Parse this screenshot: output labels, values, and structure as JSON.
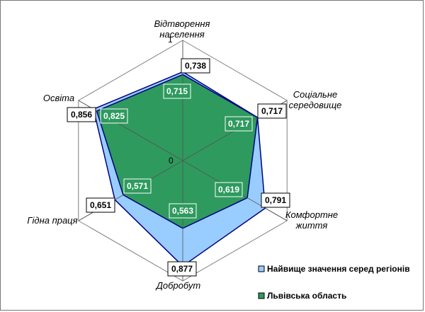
{
  "chart_data": {
    "type": "radar",
    "axes": [
      "Відтворення населення",
      "Соціальне середовище",
      "Комфортне життя",
      "Добробут",
      "Гідна праця",
      "Освіта"
    ],
    "axis_label_lines": [
      [
        "Відтворення",
        "населення"
      ],
      [
        "Соціальне",
        "середовище"
      ],
      [
        "Комфортне",
        "життя"
      ],
      [
        "Добробут"
      ],
      [
        "Гідна праця"
      ],
      [
        "Освіта"
      ]
    ],
    "rlim": [
      0,
      1
    ],
    "ticks": [
      "0",
      "1"
    ],
    "series": [
      {
        "name": "Найвище значення серед регіонів",
        "color": "#99ccff",
        "values": [
          0.738,
          0.717,
          0.791,
          0.877,
          0.651,
          0.856
        ],
        "labels": [
          "0,738",
          "0,717",
          "0,791",
          "0,877",
          "0,651",
          "0,856"
        ]
      },
      {
        "name": "Львівська область",
        "color": "#2e9a5e",
        "values": [
          0.715,
          0.717,
          0.619,
          0.563,
          0.571,
          0.825
        ],
        "labels": [
          "0,715",
          "0,717",
          "0,619",
          "0,563",
          "0,571",
          "0,825"
        ]
      }
    ],
    "grid": true,
    "legend_position": "bottom-right"
  }
}
